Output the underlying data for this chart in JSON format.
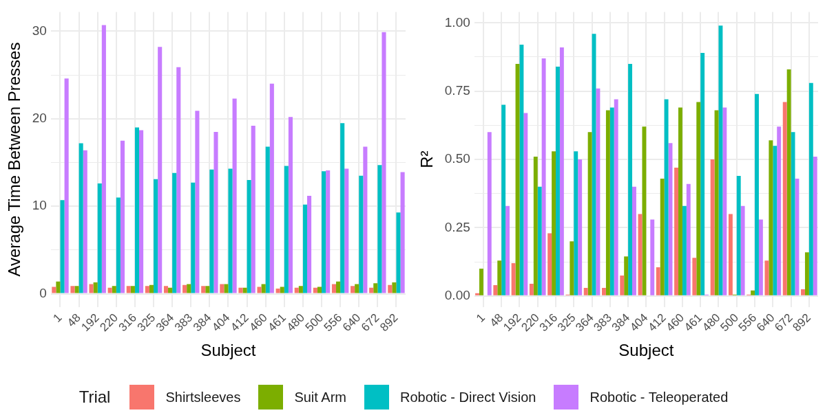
{
  "chart_data": [
    {
      "type": "bar",
      "xlabel": "Subject",
      "ylabel": "Average Time Between Presses",
      "grid": true,
      "legend": "bottom",
      "legend_title": "Trial",
      "categories": [
        "1",
        "48",
        "192",
        "220",
        "316",
        "325",
        "364",
        "383",
        "384",
        "404",
        "412",
        "460",
        "461",
        "480",
        "500",
        "556",
        "640",
        "672",
        "892"
      ],
      "ylim": [
        -1.5,
        32.2
      ],
      "yticks": [
        0,
        {
          "value": 5,
          "label": null
        },
        10,
        {
          "value": 15,
          "label": null
        },
        20,
        {
          "value": 25,
          "label": null
        },
        30
      ],
      "series": [
        {
          "name": "Shirtsleeves",
          "color": "#f8766d",
          "values": [
            0.8,
            0.9,
            1.1,
            0.7,
            0.9,
            0.9,
            0.9,
            1.0,
            0.9,
            1.1,
            0.7,
            0.8,
            0.6,
            0.7,
            0.7,
            1.1,
            0.9,
            0.7,
            1.0
          ]
        },
        {
          "name": "Suit Arm",
          "color": "#7cae00",
          "values": [
            1.4,
            0.9,
            1.3,
            0.9,
            0.9,
            1.0,
            0.7,
            1.1,
            0.9,
            1.1,
            0.7,
            1.1,
            0.8,
            0.9,
            0.8,
            1.4,
            1.1,
            1.2,
            1.3
          ]
        },
        {
          "name": "Robotic - Direct Vision",
          "color": "#00bfc4",
          "values": [
            10.7,
            17.2,
            12.6,
            11.0,
            19.0,
            13.1,
            13.8,
            12.7,
            14.2,
            14.3,
            13.0,
            16.8,
            14.6,
            10.2,
            14.0,
            19.5,
            13.5,
            14.7,
            9.3
          ]
        },
        {
          "name": "Robotic - Teleoperated",
          "color": "#c77cff",
          "values": [
            24.6,
            16.4,
            30.7,
            17.5,
            18.7,
            28.2,
            25.9,
            20.9,
            18.5,
            22.3,
            19.2,
            24.0,
            20.2,
            11.2,
            14.1,
            14.3,
            16.8,
            29.9,
            13.9
          ]
        }
      ]
    },
    {
      "type": "bar",
      "xlabel": "Subject",
      "ylabel": "R²",
      "grid": true,
      "categories": [
        "1",
        "48",
        "192",
        "220",
        "316",
        "325",
        "364",
        "383",
        "384",
        "404",
        "412",
        "460",
        "461",
        "480",
        "500",
        "556",
        "640",
        "672",
        "892"
      ],
      "ylim": [
        -0.04,
        1.04
      ],
      "yticks": [
        {
          "value": 0,
          "label": "0.00"
        },
        {
          "value": 0.125,
          "label": null
        },
        0.25,
        {
          "value": 0.375,
          "label": null
        },
        {
          "value": 0.5,
          "label": "0.50"
        },
        {
          "value": 0.625,
          "label": null
        },
        0.75,
        {
          "value": 0.875,
          "label": null
        },
        {
          "value": 1,
          "label": "1.00"
        }
      ],
      "series": [
        {
          "color": "#f8766d",
          "values": [
            0.01,
            0.04,
            0.12,
            0.045,
            0.23,
            0.005,
            0.03,
            0.03,
            0.075,
            0.3,
            0.105,
            0.47,
            0.14,
            0.5,
            0.3,
            0.005,
            0.13,
            0.71,
            0.025
          ]
        },
        {
          "color": "#7cae00",
          "values": [
            0.1,
            0.13,
            0.85,
            0.51,
            0.53,
            0.2,
            0.6,
            0.68,
            0.145,
            0.62,
            0.43,
            0.69,
            0.71,
            0.68,
            0.005,
            0.02,
            0.57,
            0.83,
            0.16
          ]
        },
        {
          "color": "#00bfc4",
          "values": [
            0,
            0.7,
            0.92,
            0.4,
            0.84,
            0.53,
            0.96,
            0.69,
            0.85,
            0,
            0.72,
            0.33,
            0.89,
            0.99,
            0.44,
            0.74,
            0.55,
            0.6,
            0.78
          ]
        },
        {
          "color": "#c77cff",
          "values": [
            0.6,
            0.33,
            0.67,
            0.87,
            0.91,
            0.5,
            0.76,
            0.72,
            0.4,
            0.28,
            0.56,
            0.41,
            0.005,
            0.69,
            0.33,
            0.28,
            0.62,
            0.43,
            0.51
          ]
        }
      ]
    }
  ]
}
